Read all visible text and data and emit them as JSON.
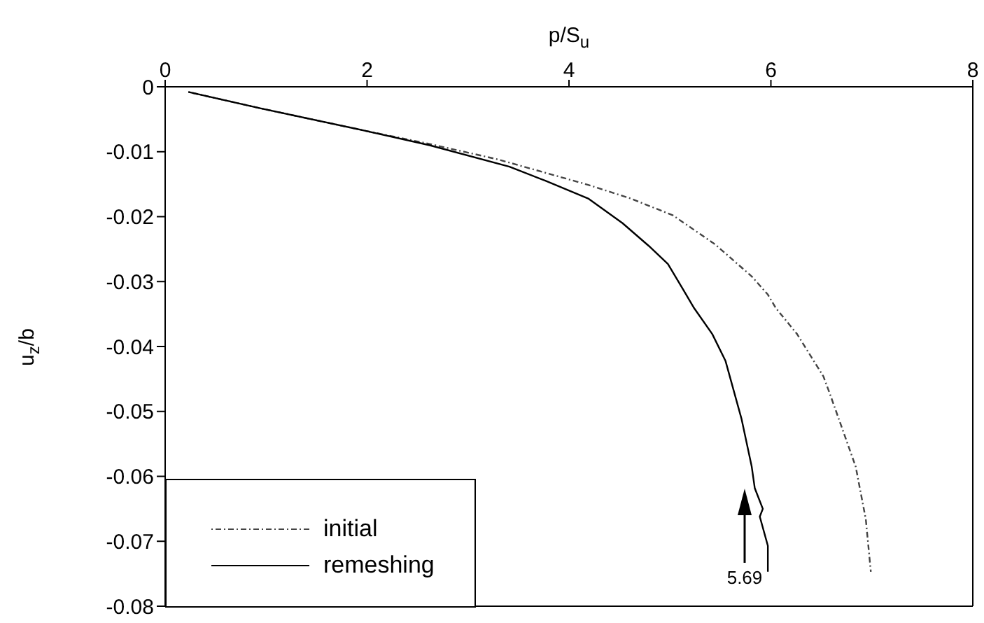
{
  "chart_data": {
    "type": "line",
    "xlabel": "p/S$_{u}$",
    "ylabel": "u$_{z}$/b",
    "xlim": [
      0,
      8
    ],
    "xticks": [
      0,
      2,
      4,
      6,
      8
    ],
    "ylim": [
      -0.08,
      0
    ],
    "yticks": [
      0,
      -0.01,
      -0.02,
      -0.03,
      -0.04,
      -0.05,
      -0.06,
      -0.07,
      -0.08
    ],
    "legend": "bottom left",
    "marker": "none",
    "annotations": [
      "5.69"
    ],
    "series": [
      {
        "name": "initial",
        "color": "#444444",
        "line_style": "dotted",
        "x": [
          0.23,
          0.94,
          1.99,
          2.62,
          3.3,
          4.19,
          4.61,
          5.03,
          5.45,
          5.81,
          5.97,
          6.05,
          6.26,
          6.52,
          6.58,
          6.84,
          6.94,
          6.99
        ],
        "values": [
          -0.0008,
          -0.0033,
          -0.0068,
          -0.0088,
          -0.0112,
          -0.0151,
          -0.0172,
          -0.0198,
          -0.0243,
          -0.0292,
          -0.032,
          -0.0341,
          -0.0381,
          -0.0446,
          -0.0471,
          -0.0585,
          -0.0666,
          -0.0747
        ]
      },
      {
        "name": "remeshing",
        "color": "#000000",
        "line_style": "solid",
        "x": [
          0.23,
          0.94,
          1.99,
          2.62,
          3.41,
          3.77,
          4.19,
          4.53,
          4.79,
          4.98,
          5.13,
          5.24,
          5.42,
          5.55,
          5.71,
          5.81,
          5.84,
          5.92,
          5.89,
          5.97,
          5.97
        ],
        "values": [
          -0.0008,
          -0.0033,
          -0.0068,
          -0.009,
          -0.0123,
          -0.0145,
          -0.0172,
          -0.021,
          -0.0245,
          -0.0273,
          -0.0312,
          -0.0341,
          -0.0381,
          -0.0422,
          -0.0512,
          -0.0585,
          -0.0618,
          -0.065,
          -0.0662,
          -0.0707,
          -0.0747
        ]
      }
    ]
  }
}
